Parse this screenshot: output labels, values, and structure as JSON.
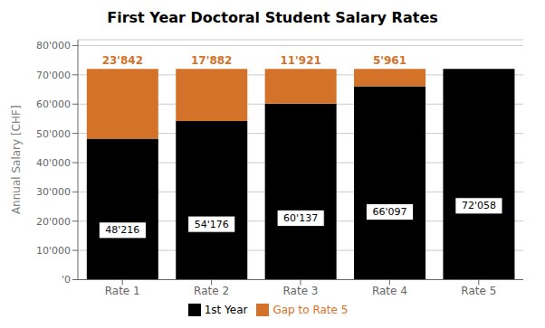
{
  "chart_data": {
    "type": "bar",
    "title": "First Year Doctoral Student Salary Rates",
    "categories": [
      "Rate 1",
      "Rate 2",
      "Rate 3",
      "Rate 4",
      "Rate 5"
    ],
    "series": [
      {
        "name": "1st Year",
        "color": "#000000",
        "values": [
          48216,
          54176,
          60137,
          66097,
          72058
        ],
        "data_labels": true,
        "value_labels": [
          "48'216",
          "54'176",
          "60'137",
          "66'097",
          "72'058"
        ]
      },
      {
        "name": "Gap to Rate 5",
        "color": "#D4722A",
        "values": [
          23842,
          17882,
          11921,
          5961,
          0
        ],
        "data_labels": true,
        "value_labels": [
          "23'842",
          "17'882",
          "11'921",
          "5'961",
          null
        ]
      }
    ],
    "stacked": true,
    "ylabel": "Annual Salary [CHF]",
    "ylim": [
      0,
      82000
    ],
    "yticks": [
      {
        "value": 0,
        "label": "'0"
      },
      {
        "value": 10000,
        "label": "10'000"
      },
      {
        "value": 20000,
        "label": "20'000"
      },
      {
        "value": 30000,
        "label": "30'000"
      },
      {
        "value": 40000,
        "label": "40'000"
      },
      {
        "value": 50000,
        "label": "50'000"
      },
      {
        "value": 60000,
        "label": "60'000"
      },
      {
        "value": 70000,
        "label": "70'000"
      },
      {
        "value": 80000,
        "label": "80'000"
      }
    ],
    "grid": true,
    "legend": "bottom"
  }
}
